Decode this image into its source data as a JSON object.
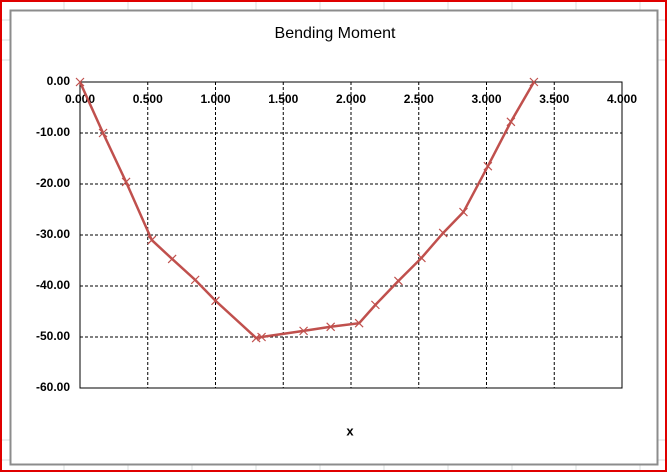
{
  "chart_data": {
    "type": "line",
    "title": "Bending Moment",
    "x_label": "x",
    "x": [
      0,
      0.17,
      0.34,
      0.53,
      0.68,
      0.85,
      1.0,
      1.3,
      1.34,
      1.65,
      1.85,
      2.06,
      2.18,
      2.35,
      2.52,
      2.68,
      2.83,
      3.01,
      3.18,
      3.35
    ],
    "series": [
      {
        "color": "#c0504d",
        "values": [
          0,
          -10,
          -19.6,
          -31,
          -34.7,
          -38.8,
          -42.9,
          -50.2,
          -50,
          -48.8,
          -48,
          -47.3,
          -43.7,
          -39,
          -34.5,
          -29.6,
          -25.5,
          -16.5,
          -7.8,
          0
        ]
      }
    ],
    "xlim": [
      0,
      4
    ],
    "ylim": [
      -60,
      0
    ],
    "xticks": [
      {
        "value": 0,
        "label": "0.000"
      },
      {
        "value": 0.5,
        "label": "0.500"
      },
      {
        "value": 1,
        "label": "1.000"
      },
      {
        "value": 1.5,
        "label": "1.500"
      },
      {
        "value": 2,
        "label": "2.000"
      },
      {
        "value": 2.5,
        "label": "2.500"
      },
      {
        "value": 3,
        "label": "3.000"
      },
      {
        "value": 3.5,
        "label": "3.500"
      },
      {
        "value": 4,
        "label": "4.000"
      }
    ],
    "yticks": [
      {
        "value": 0,
        "label": "0.00"
      },
      {
        "value": -10,
        "label": "-10.00"
      },
      {
        "value": -20,
        "label": "-20.00"
      },
      {
        "value": -30,
        "label": "-30.00"
      },
      {
        "value": -40,
        "label": "-40.00"
      },
      {
        "value": -50,
        "label": "-50.00"
      },
      {
        "value": -60,
        "label": "-60.00"
      }
    ],
    "grid": true,
    "marker": "x"
  }
}
